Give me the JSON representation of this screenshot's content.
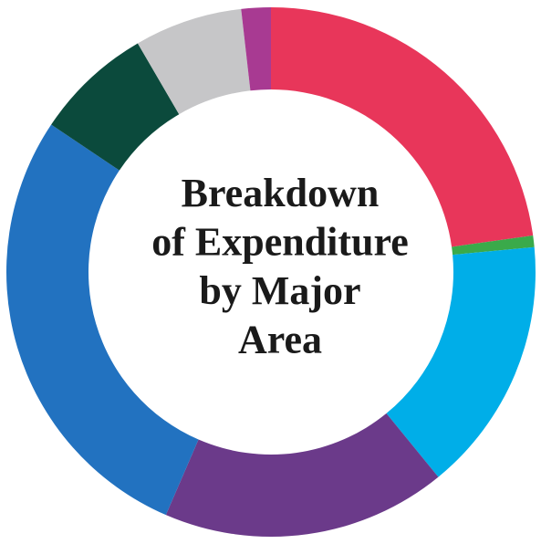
{
  "chart_data": {
    "type": "donut",
    "title": [
      "Breakdown",
      "of Expenditure",
      "by Major",
      "Area"
    ],
    "categories": [
      null,
      null,
      null,
      null,
      null,
      null,
      null,
      null
    ],
    "values": [
      22.8,
      0.7,
      15.6,
      17.4,
      27.9,
      7.2,
      6.6,
      1.8
    ],
    "colors": [
      "#e8365a",
      "#3aaa4a",
      "#00aee8",
      "#6b3a8a",
      "#2272c0",
      "#0b4a3c",
      "#c6c6c8",
      "#a83a92"
    ]
  }
}
